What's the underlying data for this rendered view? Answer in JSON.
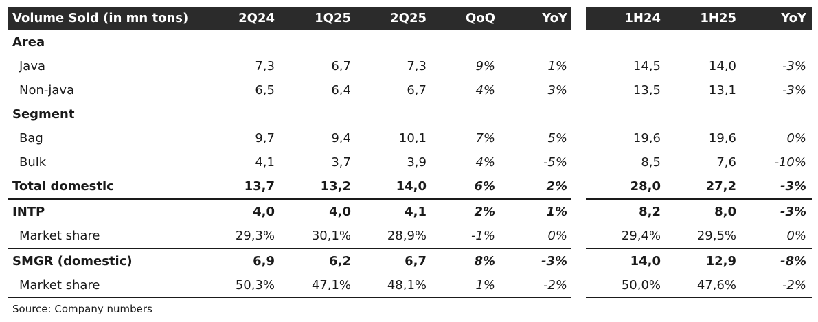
{
  "left_header": [
    "Volume Sold (in mn tons)",
    "2Q24",
    "1Q25",
    "2Q25",
    "QoQ",
    "YoY"
  ],
  "right_header": [
    "1H24",
    "1H25",
    "YoY"
  ],
  "rows": [
    {
      "label": "Area",
      "type": "section",
      "left": [
        "",
        "",
        "",
        "",
        ""
      ],
      "right": [
        "",
        "",
        ""
      ]
    },
    {
      "label": "Java",
      "type": "item",
      "left": [
        "7,3",
        "6,7",
        "7,3",
        "9%",
        "1%"
      ],
      "right": [
        "14,5",
        "14,0",
        "-3%"
      ]
    },
    {
      "label": "Non-java",
      "type": "item",
      "left": [
        "6,5",
        "6,4",
        "6,7",
        "4%",
        "3%"
      ],
      "right": [
        "13,5",
        "13,1",
        "-3%"
      ]
    },
    {
      "label": "Segment",
      "type": "section",
      "left": [
        "",
        "",
        "",
        "",
        ""
      ],
      "right": [
        "",
        "",
        ""
      ]
    },
    {
      "label": "Bag",
      "type": "item",
      "left": [
        "9,7",
        "9,4",
        "10,1",
        "7%",
        "5%"
      ],
      "right": [
        "19,6",
        "19,6",
        "0%"
      ]
    },
    {
      "label": "Bulk",
      "type": "item",
      "left": [
        "4,1",
        "3,7",
        "3,9",
        "4%",
        "-5%"
      ],
      "right": [
        "8,5",
        "7,6",
        "-10%"
      ]
    },
    {
      "label": "Total domestic",
      "type": "total",
      "left": [
        "13,7",
        "13,2",
        "14,0",
        "6%",
        "2%"
      ],
      "right": [
        "28,0",
        "27,2",
        "-3%"
      ]
    },
    {
      "label": "INTP",
      "type": "total",
      "left": [
        "4,0",
        "4,0",
        "4,1",
        "2%",
        "1%"
      ],
      "right": [
        "8,2",
        "8,0",
        "-3%"
      ]
    },
    {
      "label": "Market share",
      "type": "item",
      "left": [
        "29,3%",
        "30,1%",
        "28,9%",
        "-1%",
        "0%"
      ],
      "right": [
        "29,4%",
        "29,5%",
        "0%"
      ]
    },
    {
      "label": "SMGR (domestic)",
      "type": "total",
      "left": [
        "6,9",
        "6,2",
        "6,7",
        "8%",
        "-3%"
      ],
      "right": [
        "14,0",
        "12,9",
        "-8%"
      ]
    },
    {
      "label": "Market share",
      "type": "item",
      "left": [
        "50,3%",
        "47,1%",
        "48,1%",
        "1%",
        "-2%"
      ],
      "right": [
        "50,0%",
        "47,6%",
        "-2%"
      ]
    }
  ],
  "source": "Source: Company numbers"
}
